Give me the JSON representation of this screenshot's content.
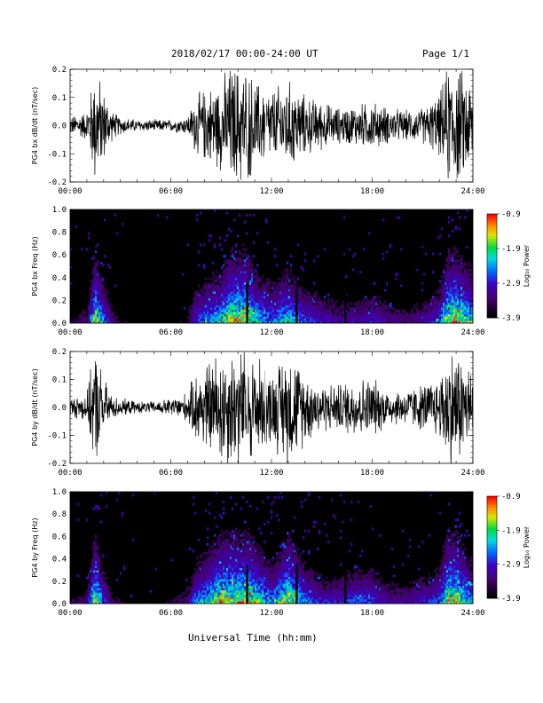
{
  "header": {
    "date_range": "2018/02/17  00:00-24:00 UT",
    "page": "Page 1/1"
  },
  "x_axis_label": "Universal Time (hh:mm)",
  "colorbar": {
    "label": "Log₁₀ Power",
    "ticks": [
      "-0.9",
      "-1.9",
      "-2.9",
      "-3.9"
    ],
    "range": [
      -3.9,
      -0.9
    ]
  },
  "chart_data": [
    {
      "type": "line",
      "ylabel": "PG4 bx dB/dt (nT/sec)",
      "xlim": [
        0,
        24
      ],
      "ylim": [
        -0.2,
        0.2
      ],
      "x_ticks": [
        "00:00",
        "06:00",
        "12:00",
        "18:00",
        "24:00"
      ],
      "y_ticks": [
        "0.2",
        "0.1",
        "0.0",
        "-0.1",
        "-0.2"
      ],
      "envelope_hours": [
        0,
        1,
        1.5,
        2,
        2.5,
        3,
        4,
        5,
        6,
        7,
        7.5,
        8,
        9,
        9.5,
        10,
        10.5,
        11,
        12,
        13,
        14,
        15,
        16,
        17,
        18,
        19,
        20,
        21,
        22,
        22.5,
        23,
        24
      ],
      "envelope_amplitude": [
        0.03,
        0.05,
        0.2,
        0.12,
        0.05,
        0.03,
        0.02,
        0.02,
        0.02,
        0.03,
        0.1,
        0.12,
        0.15,
        0.2,
        0.2,
        0.2,
        0.15,
        0.12,
        0.15,
        0.1,
        0.08,
        0.06,
        0.07,
        0.08,
        0.06,
        0.05,
        0.06,
        0.1,
        0.2,
        0.2,
        0.15
      ]
    },
    {
      "type": "heatmap",
      "ylabel": "PG4 bx Freq (Hz)",
      "xlim": [
        0,
        24
      ],
      "ylim": [
        0,
        1.0
      ],
      "x_ticks": [
        "00:00",
        "06:00",
        "12:00",
        "18:00",
        "24:00"
      ],
      "y_ticks": [
        "1.0",
        "0.8",
        "0.6",
        "0.4",
        "0.2",
        "0.0"
      ]
    },
    {
      "type": "line",
      "ylabel": "PG4 by dB/dt (nT/sec)",
      "xlim": [
        0,
        24
      ],
      "ylim": [
        -0.2,
        0.2
      ],
      "x_ticks": [
        "00:00",
        "06:00",
        "12:00",
        "18:00",
        "24:00"
      ],
      "y_ticks": [
        "0.2",
        "0.1",
        "0.0",
        "-0.1",
        "-0.2"
      ],
      "envelope_hours": [
        0,
        1,
        1.5,
        2,
        2.5,
        3,
        4,
        5,
        6,
        7,
        7.5,
        8,
        9,
        9.5,
        10,
        10.5,
        11,
        12,
        13,
        14,
        15,
        16,
        17,
        18,
        19,
        20,
        21,
        22,
        22.5,
        23,
        24
      ],
      "envelope_amplitude": [
        0.03,
        0.05,
        0.2,
        0.1,
        0.04,
        0.03,
        0.02,
        0.02,
        0.03,
        0.05,
        0.12,
        0.14,
        0.2,
        0.2,
        0.2,
        0.2,
        0.18,
        0.12,
        0.2,
        0.12,
        0.08,
        0.08,
        0.1,
        0.1,
        0.06,
        0.06,
        0.08,
        0.1,
        0.2,
        0.2,
        0.12
      ]
    },
    {
      "type": "heatmap",
      "ylabel": "PG4 by Freq (Hz)",
      "xlim": [
        0,
        24
      ],
      "ylim": [
        0,
        1.0
      ],
      "x_ticks": [
        "00:00",
        "06:00",
        "12:00",
        "18:00",
        "24:00"
      ],
      "y_ticks": [
        "1.0",
        "0.8",
        "0.6",
        "0.4",
        "0.2",
        "0.0"
      ]
    }
  ]
}
